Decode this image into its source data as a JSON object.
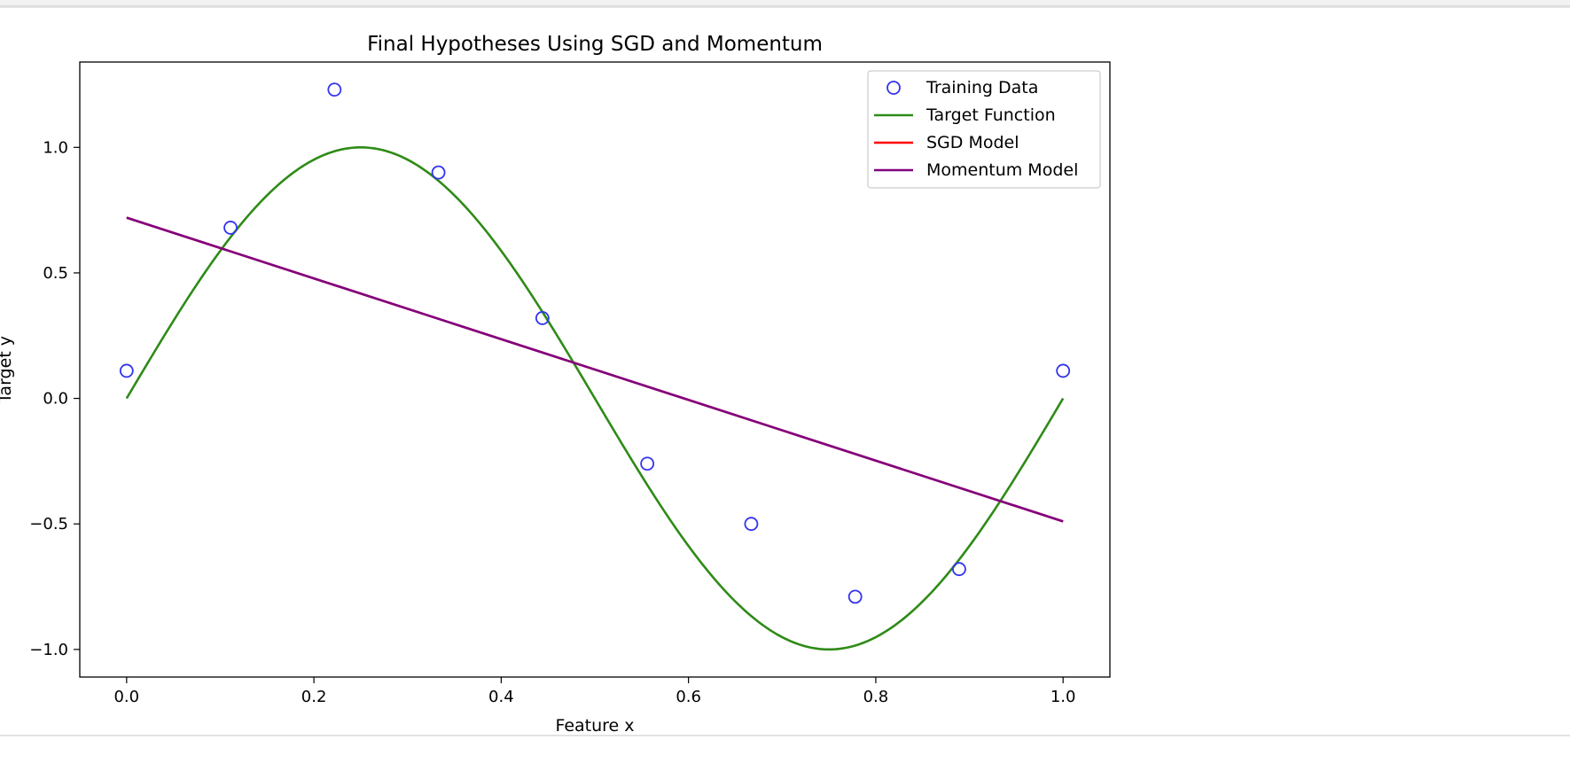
{
  "chart_data": {
    "type": "line",
    "title": "Final Hypotheses Using SGD and Momentum",
    "xlabel": "Feature x",
    "ylabel": "Target y",
    "xlim": [
      -0.05,
      1.05
    ],
    "ylim": [
      -1.11,
      1.34
    ],
    "xticks": [
      0.0,
      0.2,
      0.4,
      0.6,
      0.8,
      1.0
    ],
    "xtick_labels": [
      "0.0",
      "0.2",
      "0.4",
      "0.6",
      "0.8",
      "1.0"
    ],
    "yticks": [
      -1.0,
      -0.5,
      0.0,
      0.5,
      1.0
    ],
    "ytick_labels": [
      "−1.0",
      "−0.5",
      "0.0",
      "0.5",
      "1.0"
    ],
    "grid": false,
    "legend_position": "upper-right",
    "series": [
      {
        "name": "Training Data",
        "kind": "scatter",
        "color": "#3333ee",
        "x": [
          0.0,
          0.111,
          0.222,
          0.333,
          0.444,
          0.556,
          0.667,
          0.778,
          0.889,
          1.0
        ],
        "y": [
          0.11,
          0.68,
          1.23,
          0.9,
          0.32,
          -0.26,
          -0.5,
          -0.79,
          -0.68,
          0.11
        ]
      },
      {
        "name": "Target Function",
        "kind": "line",
        "color": "#2e8b17",
        "function": "sin(2*pi*x)",
        "x_range": [
          0.0,
          1.0
        ]
      },
      {
        "name": "SGD Model",
        "kind": "line",
        "color": "#ff0000",
        "x": [
          0.0,
          1.0
        ],
        "y": [
          0.72,
          -0.49
        ]
      },
      {
        "name": "Momentum Model",
        "kind": "line",
        "color": "#800080",
        "x": [
          0.0,
          1.0
        ],
        "y": [
          0.72,
          -0.49
        ]
      }
    ]
  }
}
